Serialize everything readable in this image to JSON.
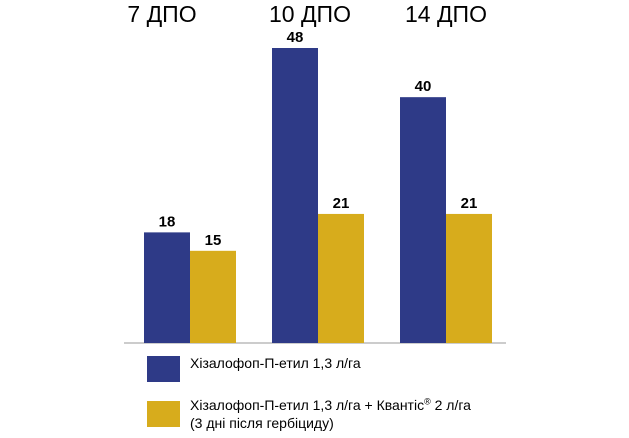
{
  "chart_data": {
    "type": "bar",
    "categories": [
      "7 ДПО",
      "10 ДПО",
      "14 ДПО"
    ],
    "series": [
      {
        "name": "Хізалофоп-П-етил 1,3 л/га",
        "color": "#2e3a87",
        "values": [
          18,
          48,
          40
        ]
      },
      {
        "name": "Хізалофоп-П-етил 1,3 л/га + Квантіс® 2 л/га (3 дні після гербіциду)",
        "color": "#d7ac1c",
        "values": [
          15,
          21,
          21
        ]
      }
    ],
    "ylim": [
      0,
      48
    ],
    "grid": false,
    "legend_position": "bottom"
  },
  "legend": {
    "item1": {
      "text": "Хізалофоп-П-етил 1,3 л/га"
    },
    "item2": {
      "line1_main": "Хізалофоп-П-етил 1,3 л/га + Квантіс",
      "line1_sup": "®",
      "line1_tail": " 2 л/га",
      "line2": "(3 дні після гербіциду)"
    }
  }
}
